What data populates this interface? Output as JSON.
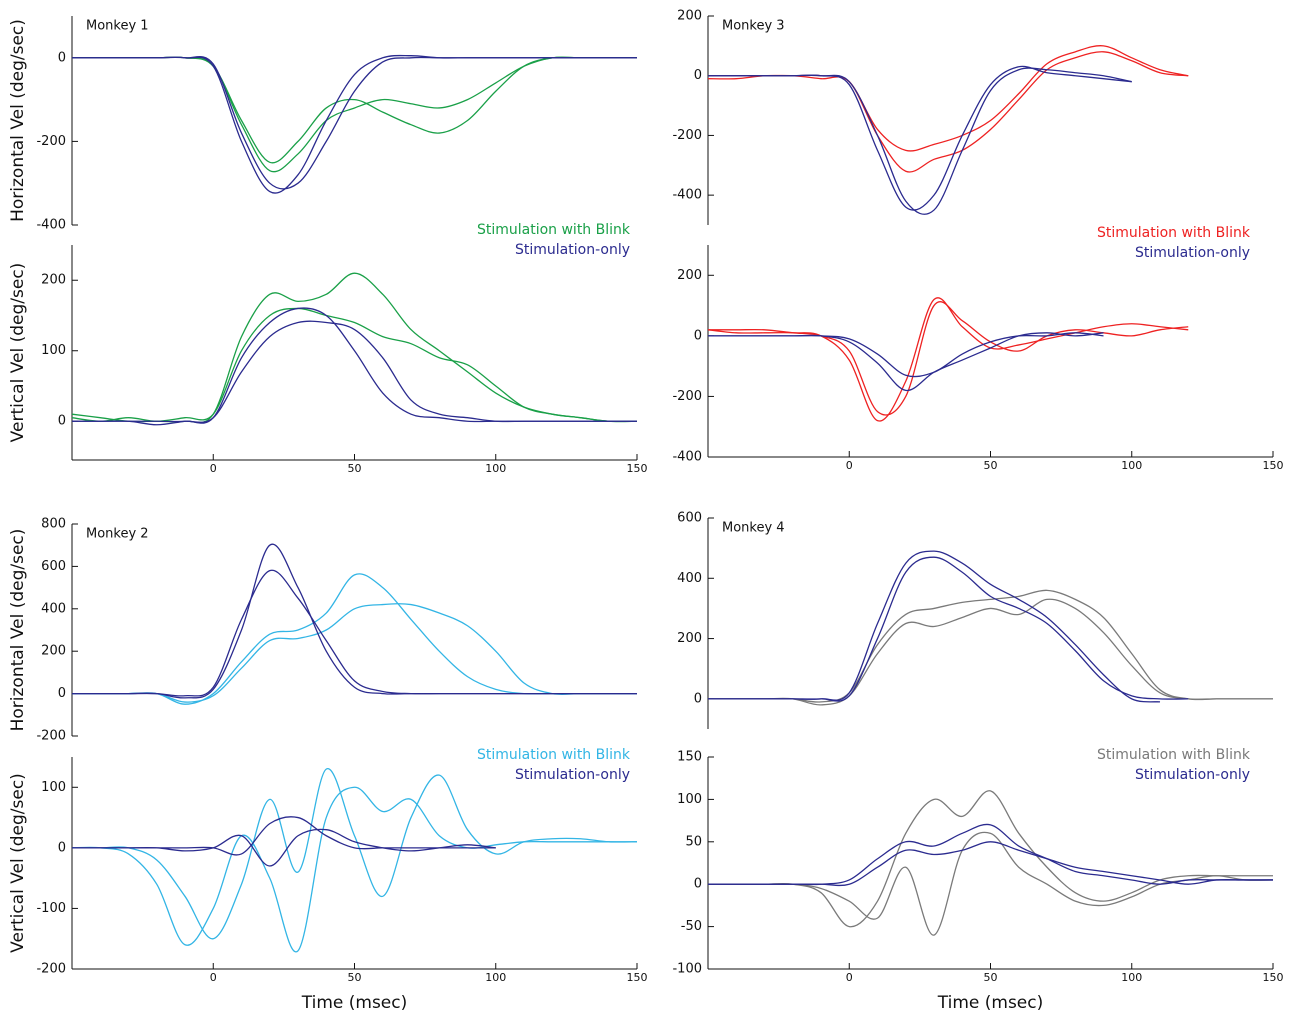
{
  "chart_data": [
    {
      "type": "line",
      "annotation": "Monkey 1",
      "ylabel": "Horizontal Vel (deg/sec)",
      "x": [
        -50,
        -40,
        -30,
        -20,
        -10,
        0,
        10,
        20,
        30,
        40,
        50,
        60,
        70,
        80,
        90,
        100,
        110,
        120,
        130,
        140,
        150
      ],
      "xlim": [
        -50,
        150
      ],
      "ylim": [
        -400,
        100
      ],
      "yticks": [
        -400,
        -200,
        0
      ],
      "series": [
        {
          "name": "Stimulation with Blink",
          "color": "#1aa048",
          "traces": [
            [
              0,
              0,
              0,
              0,
              0,
              -20,
              -150,
              -250,
              -200,
              -120,
              -100,
              -130,
              -160,
              -180,
              -150,
              -80,
              -20,
              0,
              0,
              0,
              0
            ],
            [
              0,
              0,
              0,
              0,
              0,
              -20,
              -160,
              -270,
              -230,
              -150,
              -120,
              -100,
              -110,
              -120,
              -100,
              -60,
              -20,
              0,
              0,
              0,
              0
            ]
          ]
        },
        {
          "name": "Stimulation-only",
          "color": "#2b2b8f",
          "traces": [
            [
              0,
              0,
              0,
              0,
              0,
              -20,
              -200,
              -320,
              -280,
              -150,
              -40,
              0,
              5,
              0,
              0,
              0,
              0,
              0,
              0,
              0,
              0
            ],
            [
              0,
              0,
              0,
              0,
              0,
              -15,
              -180,
              -300,
              -300,
              -200,
              -80,
              -10,
              0,
              0,
              0,
              0,
              0,
              0,
              0,
              0,
              0
            ]
          ]
        }
      ]
    },
    {
      "type": "line",
      "ylabel": "Vertical Vel (deg/sec)",
      "x": [
        -50,
        -40,
        -30,
        -20,
        -10,
        0,
        10,
        20,
        30,
        40,
        50,
        60,
        70,
        80,
        90,
        100,
        110,
        120,
        130,
        140,
        150
      ],
      "xlim": [
        -50,
        150
      ],
      "xticks": [
        0,
        50,
        100,
        150
      ],
      "ylim": [
        -55,
        250
      ],
      "yticks": [
        0,
        100,
        200
      ],
      "series": [
        {
          "color": "#1aa048",
          "traces": [
            [
              10,
              5,
              0,
              0,
              0,
              10,
              120,
              180,
              170,
              180,
              210,
              180,
              130,
              100,
              70,
              40,
              20,
              10,
              5,
              0,
              0
            ],
            [
              5,
              0,
              5,
              0,
              5,
              10,
              100,
              150,
              160,
              150,
              140,
              120,
              110,
              90,
              80,
              50,
              20,
              10,
              5,
              0,
              0
            ]
          ]
        },
        {
          "color": "#2b2b8f",
          "traces": [
            [
              0,
              0,
              0,
              -5,
              0,
              5,
              90,
              140,
              160,
              150,
              100,
              40,
              10,
              5,
              0,
              0,
              0,
              0,
              0,
              0,
              0
            ],
            [
              0,
              0,
              0,
              0,
              0,
              5,
              70,
              120,
              140,
              140,
              130,
              90,
              30,
              10,
              5,
              0,
              0,
              0,
              0,
              0,
              0
            ]
          ]
        }
      ]
    },
    {
      "type": "line",
      "annotation": "Monkey 3",
      "x": [
        -50,
        -40,
        -30,
        -20,
        -10,
        0,
        10,
        20,
        30,
        40,
        50,
        60,
        70,
        80,
        90,
        100,
        110,
        120,
        130,
        140,
        150
      ],
      "xlim": [
        -50,
        150
      ],
      "ylim": [
        -500,
        200
      ],
      "yticks": [
        -400,
        -200,
        0,
        200
      ],
      "series": [
        {
          "name": "Stimulation with Blink",
          "color": "#ee2222",
          "traces": [
            [
              0,
              0,
              0,
              0,
              -10,
              -20,
              -200,
              -320,
              -280,
              -250,
              -180,
              -80,
              20,
              60,
              80,
              50,
              10,
              0,
              null,
              null,
              null
            ],
            [
              -10,
              -10,
              0,
              0,
              0,
              -20,
              -180,
              -250,
              -230,
              -200,
              -150,
              -60,
              40,
              80,
              100,
              60,
              20,
              0,
              null,
              null,
              null
            ]
          ]
        },
        {
          "name": "Stimulation-only",
          "color": "#2b2b8f",
          "traces": [
            [
              0,
              0,
              0,
              0,
              0,
              -20,
              -200,
              -420,
              -450,
              -250,
              -50,
              20,
              20,
              10,
              0,
              -20,
              null,
              null,
              null,
              null,
              null
            ],
            [
              0,
              0,
              0,
              0,
              0,
              -30,
              -250,
              -440,
              -400,
              -200,
              -30,
              30,
              10,
              0,
              -10,
              -20,
              null,
              null,
              null,
              null,
              null
            ]
          ]
        }
      ]
    },
    {
      "type": "line",
      "x": [
        -50,
        -40,
        -30,
        -20,
        -10,
        0,
        10,
        20,
        30,
        40,
        50,
        60,
        70,
        80,
        90,
        100,
        110,
        120,
        130,
        140,
        150
      ],
      "xlim": [
        -50,
        150
      ],
      "xticks": [
        0,
        50,
        100,
        150
      ],
      "ylim": [
        -400,
        300
      ],
      "yticks": [
        -400,
        -200,
        0,
        200
      ],
      "series": [
        {
          "color": "#ee2222",
          "traces": [
            [
              20,
              20,
              20,
              10,
              0,
              -50,
              -250,
              -200,
              100,
              50,
              -20,
              -50,
              0,
              20,
              10,
              0,
              20,
              30,
              null,
              null,
              null
            ],
            [
              20,
              10,
              10,
              10,
              0,
              -80,
              -280,
              -150,
              120,
              30,
              -40,
              -30,
              -10,
              10,
              30,
              40,
              30,
              20,
              null,
              null,
              null
            ]
          ]
        },
        {
          "color": "#2b2b8f",
          "traces": [
            [
              0,
              0,
              0,
              0,
              0,
              -10,
              -60,
              -130,
              -120,
              -60,
              -20,
              0,
              0,
              10,
              0,
              null,
              null,
              null,
              null,
              null,
              null
            ],
            [
              0,
              0,
              0,
              0,
              0,
              -20,
              -90,
              -180,
              -120,
              -80,
              -40,
              0,
              10,
              0,
              10,
              null,
              null,
              null,
              null,
              null,
              null
            ]
          ]
        }
      ]
    },
    {
      "type": "line",
      "annotation": "Monkey 2",
      "ylabel": "Horizontal Vel (deg/sec)",
      "x": [
        -50,
        -40,
        -30,
        -20,
        -10,
        0,
        10,
        20,
        30,
        40,
        50,
        60,
        70,
        80,
        90,
        100,
        110,
        120,
        130,
        140,
        150
      ],
      "xlim": [
        -50,
        150
      ],
      "ylim": [
        -200,
        800
      ],
      "yticks": [
        -200,
        0,
        200,
        400,
        600,
        800
      ],
      "series": [
        {
          "color": "#33b5e5",
          "traces": [
            [
              0,
              0,
              0,
              0,
              -50,
              0,
              150,
              280,
              300,
              380,
              560,
              500,
              350,
              200,
              80,
              20,
              0,
              0,
              0,
              0,
              0
            ],
            [
              0,
              0,
              0,
              0,
              -40,
              -10,
              120,
              250,
              260,
              300,
              400,
              420,
              420,
              380,
              320,
              200,
              50,
              0,
              0,
              0,
              0
            ]
          ]
        },
        {
          "color": "#2b2b8f",
          "traces": [
            [
              0,
              0,
              0,
              0,
              -20,
              20,
              300,
              700,
              500,
              200,
              30,
              0,
              0,
              0,
              0,
              0,
              0,
              0,
              0,
              0,
              0
            ],
            [
              0,
              0,
              0,
              0,
              -10,
              30,
              350,
              580,
              450,
              250,
              60,
              10,
              0,
              0,
              0,
              0,
              0,
              0,
              0,
              0,
              0
            ]
          ]
        }
      ]
    },
    {
      "type": "line",
      "ylabel": "Vertical Vel (deg/sec)",
      "xlabel": "Time (msec)",
      "x": [
        -50,
        -40,
        -30,
        -20,
        -10,
        0,
        10,
        20,
        30,
        40,
        50,
        60,
        70,
        80,
        90,
        100,
        110,
        120,
        130,
        140,
        150
      ],
      "xlim": [
        -50,
        150
      ],
      "xticks": [
        0,
        50,
        100,
        150
      ],
      "ylim": [
        -200,
        150
      ],
      "yticks": [
        -200,
        -100,
        0,
        100
      ],
      "series": [
        {
          "name": "Stimulation with Blink",
          "color": "#33b5e5",
          "traces": [
            [
              0,
              0,
              -10,
              -60,
              -160,
              -100,
              20,
              -50,
              -170,
              50,
              100,
              60,
              80,
              20,
              0,
              5,
              10,
              10,
              10,
              10,
              10
            ],
            [
              0,
              0,
              0,
              -20,
              -80,
              -150,
              -60,
              80,
              -40,
              130,
              20,
              -80,
              50,
              120,
              30,
              -10,
              10,
              15,
              15,
              10,
              10
            ]
          ]
        },
        {
          "name": "Stimulation-only",
          "color": "#2b2b8f",
          "traces": [
            [
              0,
              0,
              0,
              0,
              0,
              0,
              -10,
              40,
              50,
              20,
              0,
              0,
              0,
              0,
              0,
              0,
              null,
              null,
              null,
              null,
              null
            ],
            [
              0,
              0,
              0,
              0,
              -5,
              0,
              20,
              -30,
              20,
              30,
              10,
              0,
              -5,
              0,
              5,
              0,
              null,
              null,
              null,
              null,
              null
            ]
          ]
        }
      ]
    },
    {
      "type": "line",
      "annotation": "Monkey 4",
      "x": [
        -50,
        -40,
        -30,
        -20,
        -10,
        0,
        10,
        20,
        30,
        40,
        50,
        60,
        70,
        80,
        90,
        100,
        110,
        120,
        130,
        140,
        150
      ],
      "xlim": [
        -50,
        150
      ],
      "ylim": [
        -100,
        600
      ],
      "yticks": [
        0,
        200,
        400,
        600
      ],
      "series": [
        {
          "color": "#7a7a7a",
          "traces": [
            [
              0,
              0,
              0,
              0,
              -10,
              20,
              180,
              280,
              300,
              320,
              330,
              340,
              360,
              330,
              270,
              150,
              30,
              0,
              0,
              0,
              0
            ],
            [
              0,
              0,
              0,
              0,
              -20,
              10,
              150,
              250,
              240,
              270,
              300,
              280,
              330,
              300,
              220,
              110,
              20,
              0,
              0,
              0,
              0
            ]
          ]
        },
        {
          "color": "#2b2b8f",
          "traces": [
            [
              0,
              0,
              0,
              0,
              0,
              20,
              250,
              450,
              490,
              450,
              380,
              330,
              270,
              180,
              80,
              0,
              -10,
              null,
              null,
              null,
              null
            ],
            [
              0,
              0,
              0,
              0,
              0,
              10,
              200,
              420,
              470,
              420,
              340,
              300,
              250,
              160,
              60,
              10,
              0,
              0,
              null,
              null,
              null
            ]
          ]
        }
      ]
    },
    {
      "type": "line",
      "xlabel": "Time (msec)",
      "x": [
        -50,
        -40,
        -30,
        -20,
        -10,
        0,
        10,
        20,
        30,
        40,
        50,
        60,
        70,
        80,
        90,
        100,
        110,
        120,
        130,
        140,
        150
      ],
      "xlim": [
        -50,
        150
      ],
      "xticks": [
        0,
        50,
        100,
        150
      ],
      "ylim": [
        -100,
        150
      ],
      "yticks": [
        -100,
        -50,
        0,
        50,
        100,
        150
      ],
      "series": [
        {
          "name": "Stimulation with Blink",
          "color": "#7a7a7a",
          "traces": [
            [
              0,
              0,
              0,
              0,
              -10,
              -50,
              -20,
              60,
              100,
              80,
              110,
              60,
              20,
              -10,
              -20,
              -10,
              5,
              10,
              10,
              10,
              10
            ],
            [
              0,
              0,
              0,
              0,
              -5,
              -20,
              -40,
              20,
              -60,
              40,
              60,
              20,
              0,
              -20,
              -25,
              -15,
              0,
              5,
              10,
              5,
              5
            ]
          ]
        },
        {
          "name": "Stimulation-only",
          "color": "#2b2b8f",
          "traces": [
            [
              0,
              0,
              0,
              0,
              0,
              5,
              30,
              50,
              45,
              60,
              70,
              45,
              30,
              15,
              10,
              5,
              0,
              5,
              5,
              5,
              5
            ],
            [
              0,
              0,
              0,
              0,
              0,
              0,
              20,
              40,
              35,
              40,
              50,
              40,
              30,
              20,
              15,
              10,
              5,
              0,
              5,
              5,
              5
            ]
          ]
        }
      ]
    }
  ]
}
